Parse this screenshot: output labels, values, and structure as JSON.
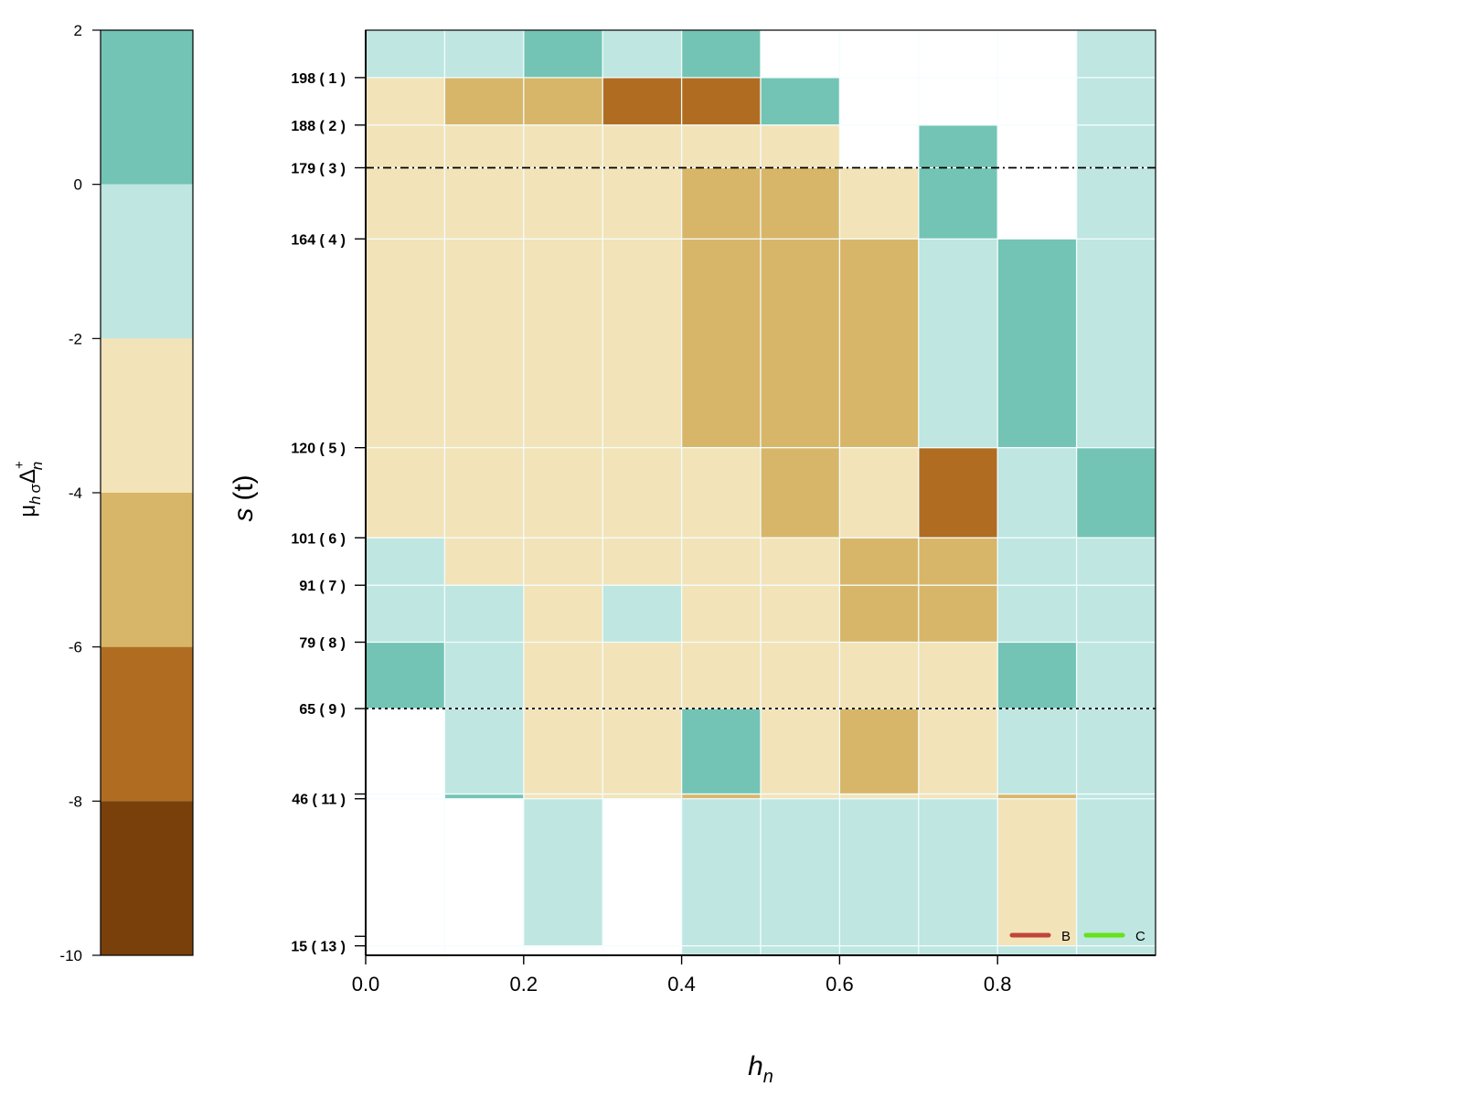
{
  "colorbar": {
    "label_main": "μ",
    "label_sub1": "h",
    "label_sub2": "σ",
    "label_delta": "Δ",
    "label_sup": "+",
    "label_sub3": "n",
    "ticks": [
      "2",
      "0",
      "-2",
      "-4",
      "-6",
      "-8",
      "-10"
    ],
    "levels": [
      {
        "from": 0,
        "to": 2,
        "color": "#73c4b5"
      },
      {
        "from": -2,
        "to": 0,
        "color": "#bfe6e1"
      },
      {
        "from": -4,
        "to": -2,
        "color": "#f3e3b8"
      },
      {
        "from": -6,
        "to": -4,
        "color": "#d8b669"
      },
      {
        "from": -8,
        "to": -6,
        "color": "#b06d22"
      },
      {
        "from": -10,
        "to": -8,
        "color": "#7a400b"
      }
    ]
  },
  "chart_data": {
    "type": "heatmap",
    "xlabel_main": "h",
    "xlabel_sub": "n",
    "ylabel_main": "s",
    "ylabel_arg": "(t)",
    "x_ticks": [
      "0.0",
      "0.2",
      "0.4",
      "0.6",
      "0.8"
    ],
    "x_tick_values": [
      0.0,
      0.2,
      0.4,
      0.6,
      0.8
    ],
    "xlim": [
      0,
      1
    ],
    "x_edges": [
      0,
      0.1,
      0.2,
      0.3,
      0.4,
      0.5,
      0.6,
      0.7,
      0.8,
      0.9,
      1.0
    ],
    "y_ticks": [
      {
        "value": 198,
        "label": "198 ( 1 )"
      },
      {
        "value": 188,
        "label": "188 ( 2 )"
      },
      {
        "value": 179,
        "label": "179 ( 3 )"
      },
      {
        "value": 164,
        "label": "164 ( 4 )"
      },
      {
        "value": 120,
        "label": "120 ( 5 )"
      },
      {
        "value": 101,
        "label": "101 ( 6 )"
      },
      {
        "value": 91,
        "label": "91 ( 7 )"
      },
      {
        "value": 79,
        "label": "79 ( 8 )"
      },
      {
        "value": 65,
        "label": "65 ( 9 )"
      },
      {
        "value": 46,
        "label": "46 ( 11 )"
      },
      {
        "value": 15,
        "label": "15 ( 13 )"
      }
    ],
    "ylim": [
      13,
      208
    ],
    "row_edges": [
      208,
      198,
      188,
      179,
      164,
      120,
      101,
      91,
      79,
      65,
      47,
      46,
      15,
      13
    ],
    "rows": [
      {
        "from": 198,
        "to": 208,
        "cells": [
          "C1",
          "C1",
          "C0",
          "C1",
          "C0",
          null,
          null,
          null,
          null,
          "C1"
        ]
      },
      {
        "from": 188,
        "to": 198,
        "cells": [
          "L0",
          "L1",
          "L1",
          "L2",
          "L2",
          "C0",
          null,
          null,
          null,
          "C1"
        ]
      },
      {
        "from": 179,
        "to": 188,
        "cells": [
          "L0",
          "L0",
          "L0",
          "L0",
          "L0",
          "L0",
          null,
          "C0",
          null,
          "C1"
        ]
      },
      {
        "from": 164,
        "to": 179,
        "cells": [
          "L0",
          "L0",
          "L0",
          "L0",
          "L1",
          "L1",
          "L0",
          "C0",
          null,
          "C1"
        ]
      },
      {
        "from": 120,
        "to": 164,
        "cells": [
          "L0",
          "L0",
          "L0",
          "L0",
          "L1",
          "L1",
          "L1",
          "C1",
          "C0",
          "C1"
        ]
      },
      {
        "from": 101,
        "to": 120,
        "cells": [
          "L0",
          "L0",
          "L0",
          "L0",
          "L0",
          "L1",
          "L0",
          "L2",
          "C1",
          "C0"
        ]
      },
      {
        "from": 91,
        "to": 101,
        "cells": [
          "C1",
          "L0",
          "L0",
          "L0",
          "L0",
          "L0",
          "L1",
          "L1",
          "C1",
          "C1"
        ]
      },
      {
        "from": 79,
        "to": 91,
        "cells": [
          "C1",
          "C1",
          "L0",
          "C1",
          "L0",
          "L0",
          "L1",
          "L1",
          "C1",
          "C1"
        ]
      },
      {
        "from": 65,
        "to": 79,
        "cells": [
          "C0",
          "C1",
          "L0",
          "L0",
          "L0",
          "L0",
          "L0",
          "L0",
          "C0",
          "C1"
        ]
      },
      {
        "from": 47,
        "to": 65,
        "cells": [
          null,
          "C1",
          "L0",
          "L0",
          "C0",
          "L0",
          "L1",
          "L0",
          "C1",
          "C1"
        ]
      },
      {
        "from": 46,
        "to": 47,
        "cells": [
          null,
          "C0",
          "L0",
          "L0",
          "L1",
          "L0",
          "L0",
          "L0",
          "L1",
          "C1"
        ]
      },
      {
        "from": 15,
        "to": 46,
        "cells": [
          null,
          null,
          "C1",
          null,
          "C1",
          "C1",
          "C1",
          "C1",
          "L0",
          "C1"
        ]
      },
      {
        "from": 13,
        "to": 15,
        "cells": [
          null,
          null,
          null,
          null,
          "C1",
          "C1",
          "C1",
          "C1",
          "C1",
          "C1"
        ]
      }
    ],
    "color_key": {
      "C0": "#73c4b5",
      "C1": "#bfe6e1",
      "L0": "#f3e3b8",
      "L1": "#d8b669",
      "L2": "#b06d22",
      "L3": "#7a400b"
    },
    "reference_lines": [
      {
        "y": 179,
        "style": "dashdot",
        "color": "#000000"
      },
      {
        "y": 65,
        "style": "dotted",
        "color": "#000000"
      }
    ],
    "legend": {
      "position": "bottom-right",
      "entries": [
        {
          "label": "B",
          "color": "#c0453b"
        },
        {
          "label": "C",
          "color": "#66e21a"
        }
      ]
    },
    "grid": true
  }
}
